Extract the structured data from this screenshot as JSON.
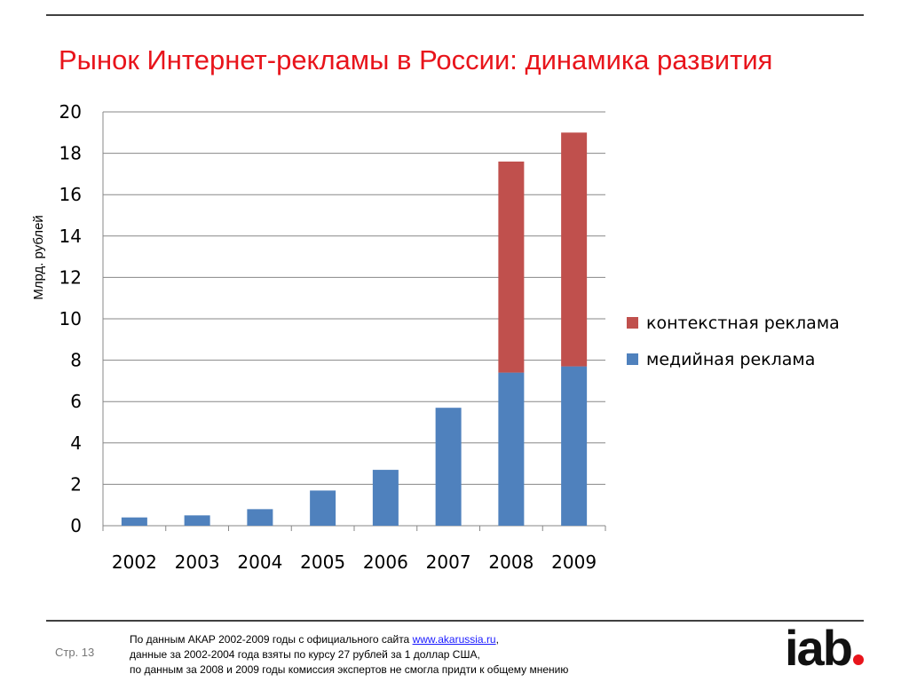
{
  "slide": {
    "title": "Рынок Интернет-рекламы в России: динамика развития",
    "page_label": "Стр. 13",
    "footnote": {
      "line1_prefix": "По данным АКАР 2002-2009 годы с  официального сайта ",
      "line1_link": "www.akarussia.ru",
      "line1_suffix": ",",
      "line2": "данные за 2002-2004 года взяты по курсу 27 рублей за 1 доллар США,",
      "line3": "по данным за 2008 и 2009 годы комиссия экспертов не смогла придти к общему мнению"
    },
    "logo_text": "iab"
  },
  "colors": {
    "title": "#e8141b",
    "media": "#4f81bd",
    "context": "#c0504d",
    "logo_dot": "#e8141b"
  },
  "chart_data": {
    "type": "bar",
    "stacked": true,
    "ylabel": "Млрд. рублей",
    "xlabel": "",
    "ylim": [
      0,
      20
    ],
    "yticks": [
      0,
      2,
      4,
      6,
      8,
      10,
      12,
      14,
      16,
      18,
      20
    ],
    "grid": true,
    "legend_position": "right",
    "categories": [
      "2002",
      "2003",
      "2004",
      "2005",
      "2006",
      "2007",
      "2008",
      "2009"
    ],
    "series": [
      {
        "name": "медийная реклама",
        "color": "#4f81bd",
        "values": [
          0.4,
          0.5,
          0.8,
          1.7,
          2.7,
          5.7,
          7.4,
          7.7
        ]
      },
      {
        "name": "контекстная реклама",
        "color": "#c0504d",
        "values": [
          0,
          0,
          0,
          0,
          0,
          0,
          10.2,
          11.3
        ]
      }
    ],
    "legend_order": [
      "контекстная реклама",
      "медийная реклама"
    ]
  }
}
